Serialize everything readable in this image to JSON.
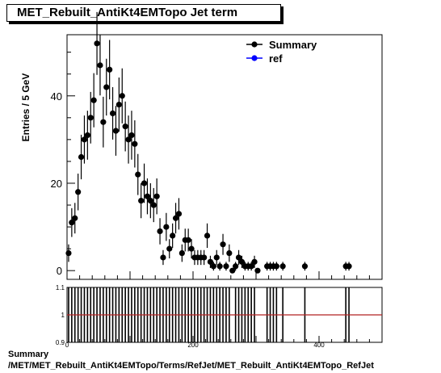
{
  "chart_data": {
    "type": "scatter",
    "title": "MET_Rebuilt_AntiKt4EMTopo Jet term",
    "ylabel": "Entries / 5 GeV",
    "xlabel": "",
    "xlim": [
      0,
      500
    ],
    "ylim": [
      -2,
      54
    ],
    "yticks": [
      0,
      20,
      40
    ],
    "xticks": [
      0,
      200,
      400
    ],
    "bin_width": 5,
    "legend": [
      {
        "name": "Summary",
        "color": "#000000"
      },
      {
        "name": "ref",
        "color": "#0000ff"
      }
    ],
    "legend_position": "top-right",
    "series": [
      {
        "name": "Summary",
        "x": [
          2.5,
          7.5,
          12.5,
          17.5,
          22.5,
          27.5,
          32.5,
          37.5,
          42.5,
          47.5,
          52.5,
          57.5,
          62.5,
          67.5,
          72.5,
          77.5,
          82.5,
          87.5,
          92.5,
          97.5,
          102.5,
          107.5,
          112.5,
          117.5,
          122.5,
          127.5,
          132.5,
          137.5,
          142.5,
          147.5,
          152.5,
          157.5,
          162.5,
          167.5,
          172.5,
          177.5,
          182.5,
          187.5,
          192.5,
          197.5,
          202.5,
          207.5,
          212.5,
          217.5,
          222.5,
          227.5,
          232.5,
          237.5,
          242.5,
          247.5,
          252.5,
          257.5,
          262.5,
          267.5,
          272.5,
          277.5,
          282.5,
          287.5,
          292.5,
          297.5,
          302.5,
          317.5,
          322.5,
          327.5,
          332.5,
          342.5,
          377.5,
          442.5,
          447.5
        ],
        "y": [
          4,
          11,
          12,
          18,
          26,
          30,
          31,
          35,
          39,
          52,
          47,
          34,
          42,
          46,
          36,
          32,
          38,
          40,
          33,
          30,
          31,
          29,
          22,
          16,
          20,
          17,
          16,
          15,
          17,
          9,
          3,
          10,
          5,
          8,
          12,
          13,
          4,
          7,
          7,
          5,
          3,
          3,
          3,
          3,
          8,
          2,
          1,
          3,
          1,
          6,
          1,
          4,
          0,
          1,
          3,
          2,
          1,
          1,
          1,
          2,
          0,
          1,
          1,
          1,
          1,
          1,
          1,
          1,
          1
        ],
        "yerr": [
          2,
          3.3,
          3.5,
          4.2,
          5.1,
          5.5,
          5.6,
          5.9,
          6.2,
          7.2,
          6.9,
          5.8,
          6.5,
          6.8,
          6,
          5.7,
          6.2,
          6.3,
          5.7,
          5.5,
          5.6,
          5.4,
          4.7,
          4,
          4.5,
          4.1,
          4,
          3.9,
          4.1,
          3,
          1.7,
          3.2,
          2.2,
          2.8,
          3.5,
          3.6,
          2,
          2.6,
          2.6,
          2.2,
          1.7,
          1.7,
          1.7,
          1.7,
          2.8,
          1.4,
          1,
          1.7,
          1,
          2.4,
          1,
          2,
          0,
          1,
          1.7,
          1.4,
          1,
          1,
          1,
          1.4,
          0,
          1,
          1,
          1,
          1,
          1,
          1,
          1,
          1
        ]
      }
    ],
    "ratio_panel": {
      "ylim": [
        0.9,
        1.1
      ],
      "yticks": [
        "0.9",
        "1",
        "1.1"
      ],
      "xticks": [
        "0",
        "200",
        "400"
      ],
      "line_value": 1,
      "line_color": "#b22222"
    }
  },
  "footer": {
    "label": "Summary",
    "path": "/MET/MET_Rebuilt_AntiKt4EMTopo/Terms/RefJet/MET_Rebuilt_AntiKt4EMTopo_RefJet"
  }
}
